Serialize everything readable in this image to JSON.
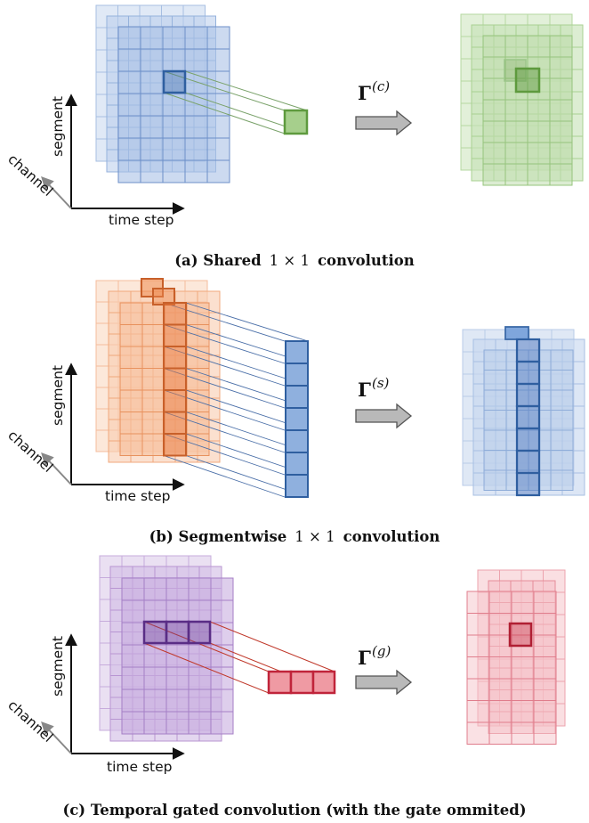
{
  "axes": {
    "y_label": "segment",
    "x_label": "time step",
    "z_label": "channel"
  },
  "panels": [
    {
      "id": "a",
      "caption_prefix": "(a) Shared",
      "caption_math": "1 × 1",
      "caption_suffix": "convolution",
      "operator": "Γ",
      "operator_sup": "(c)",
      "colors": {
        "input": "#5b86c6",
        "output": "#6fae4e",
        "highlight": "#3c6aa8"
      }
    },
    {
      "id": "b",
      "caption_prefix": "(b) Segmentwise",
      "caption_math": "1 × 1",
      "caption_suffix": "convolution",
      "operator": "Γ",
      "operator_sup": "(s)",
      "colors": {
        "input": "#ee8a4f",
        "output": "#5b86c6",
        "highlight": "#c8602a"
      }
    },
    {
      "id": "c",
      "caption_full": "(c) Temporal gated convolution (with the gate ommited)",
      "operator": "Γ",
      "operator_sup": "(g)",
      "colors": {
        "input": "#9a6cc2",
        "output": "#e06c7a",
        "highlight": "#6b3f96"
      }
    }
  ]
}
